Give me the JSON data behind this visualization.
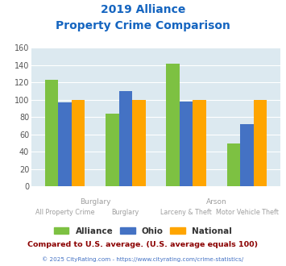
{
  "title_line1": "2019 Alliance",
  "title_line2": "Property Crime Comparison",
  "groups": [
    "All Property Crime",
    "Burglary",
    "Larceny & Theft",
    "Motor Vehicle Theft"
  ],
  "series": {
    "Alliance": [
      123,
      84,
      142,
      49
    ],
    "Ohio": [
      97,
      110,
      98,
      72
    ],
    "National": [
      100,
      100,
      100,
      100
    ]
  },
  "colors": {
    "Alliance": "#7dc142",
    "Ohio": "#4472c4",
    "National": "#ffa500"
  },
  "ylim": [
    0,
    160
  ],
  "yticks": [
    0,
    20,
    40,
    60,
    80,
    100,
    120,
    140,
    160
  ],
  "background_color": "#dce9f0",
  "title_color": "#1565c0",
  "xlabel_color": "#9e9e9e",
  "top_label_color": "#9e9e9e",
  "footnote1": "Compared to U.S. average. (U.S. average equals 100)",
  "footnote2": "© 2025 CityRating.com - https://www.cityrating.com/crime-statistics/",
  "footnote1_color": "#8b0000",
  "footnote2_color": "#4472c4",
  "bar_width": 0.22
}
